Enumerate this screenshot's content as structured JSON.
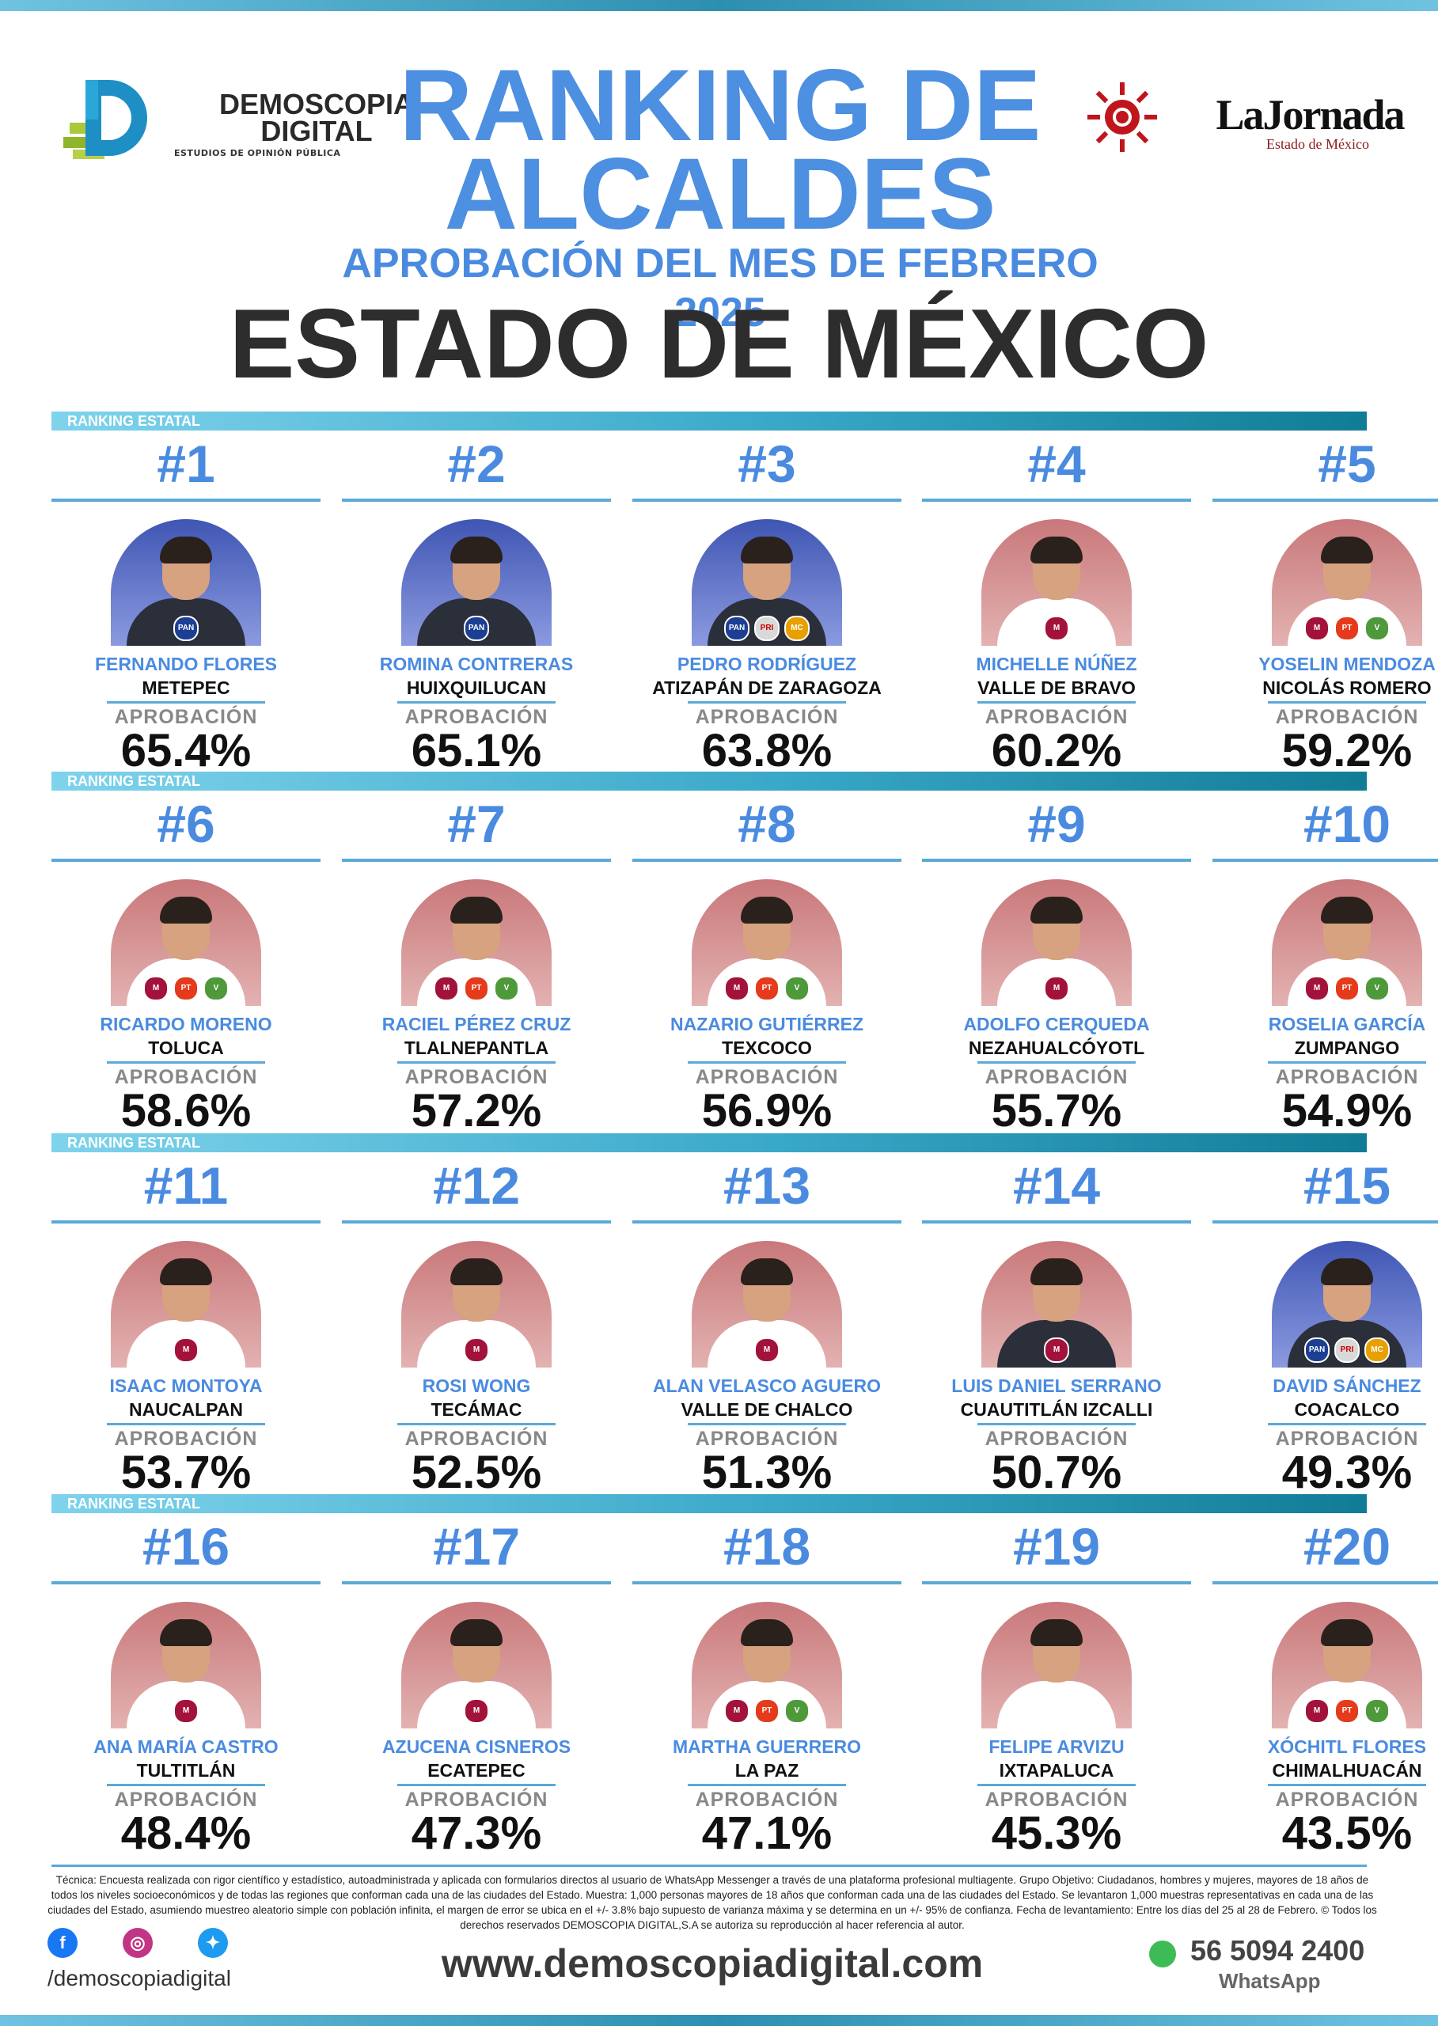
{
  "header": {
    "logo_left": {
      "name_line1": "DEMOSCOPIA",
      "name_line2": "DIGITAL",
      "tagline": "ESTUDIOS DE OPINIÓN PÚBLICA"
    },
    "logo_right": {
      "name": "LaJornada",
      "sub": "Estado de México"
    },
    "title_line1": "RANKING DE",
    "title_line2": "ALCALDES",
    "subtitle": "APROBACIÓN DEL MES DE FEBRERO 2025",
    "state": "ESTADO DE MÉXICO"
  },
  "band_label": "RANKING ESTATAL",
  "approval_label": "APROBACIÓN",
  "rows": [
    {
      "cards": [
        {
          "rank": "#1",
          "name": "FERNANDO FLORES",
          "city": "METEPEC",
          "approval": "65.4%",
          "bg": "blue",
          "parties": [
            "PAN"
          ]
        },
        {
          "rank": "#2",
          "name": "ROMINA CONTRERAS",
          "city": "HUIXQUILUCAN",
          "approval": "65.1%",
          "bg": "blue",
          "parties": [
            "PAN"
          ]
        },
        {
          "rank": "#3",
          "name": "PEDRO RODRÍGUEZ",
          "city": "ATIZAPÁN DE ZARAGOZA",
          "approval": "63.8%",
          "bg": "blue",
          "parties": [
            "PAN",
            "PRI",
            "MC"
          ]
        },
        {
          "rank": "#4",
          "name": "MICHELLE NÚÑEZ",
          "city": "VALLE DE BRAVO",
          "approval": "60.2%",
          "bg": "red",
          "parties": [
            "MORENA"
          ]
        },
        {
          "rank": "#5",
          "name": "YOSELIN MENDOZA",
          "city": "NICOLÁS ROMERO",
          "approval": "59.2%",
          "bg": "red",
          "parties": [
            "MORENA",
            "PT",
            "VERDE"
          ]
        }
      ]
    },
    {
      "cards": [
        {
          "rank": "#6",
          "name": "RICARDO MORENO",
          "city": "TOLUCA",
          "approval": "58.6%",
          "bg": "red",
          "parties": [
            "MORENA",
            "PT",
            "VERDE"
          ]
        },
        {
          "rank": "#7",
          "name": "RACIEL PÉREZ CRUZ",
          "city": "TLALNEPANTLA",
          "approval": "57.2%",
          "bg": "red",
          "parties": [
            "MORENA",
            "PT",
            "VERDE"
          ]
        },
        {
          "rank": "#8",
          "name": "NAZARIO GUTIÉRREZ",
          "city": "TEXCOCO",
          "approval": "56.9%",
          "bg": "red",
          "parties": [
            "MORENA",
            "PT",
            "VERDE"
          ]
        },
        {
          "rank": "#9",
          "name": "ADOLFO CERQUEDA",
          "city": "NEZAHUALCÓYOTL",
          "approval": "55.7%",
          "bg": "red",
          "parties": [
            "MORENA"
          ]
        },
        {
          "rank": "#10",
          "name": "ROSELIA GARCÍA",
          "city": "ZUMPANGO",
          "approval": "54.9%",
          "bg": "red",
          "parties": [
            "MORENA",
            "PT",
            "VERDE"
          ]
        }
      ]
    },
    {
      "cards": [
        {
          "rank": "#11",
          "name": "ISAAC MONTOYA",
          "city": "NAUCALPAN",
          "approval": "53.7%",
          "bg": "red",
          "parties": [
            "MORENA"
          ]
        },
        {
          "rank": "#12",
          "name": "ROSI WONG",
          "city": "TECÁMAC",
          "approval": "52.5%",
          "bg": "red",
          "parties": [
            "MORENA"
          ]
        },
        {
          "rank": "#13",
          "name": "ALAN VELASCO AGUERO",
          "city": "VALLE DE CHALCO",
          "approval": "51.3%",
          "bg": "red",
          "parties": [
            "MORENA"
          ]
        },
        {
          "rank": "#14",
          "name": "LUIS DANIEL SERRANO",
          "city": "CUAUTITLÁN IZCALLI",
          "approval": "50.7%",
          "bg": "red",
          "parties": [
            "MORENA"
          ]
        },
        {
          "rank": "#15",
          "name": "DAVID SÁNCHEZ",
          "city": "COACALCO",
          "approval": "49.3%",
          "bg": "blue",
          "parties": [
            "PAN",
            "PRI",
            "MC"
          ]
        }
      ]
    },
    {
      "cards": [
        {
          "rank": "#16",
          "name": "ANA MARÍA CASTRO",
          "city": "TULTITLÁN",
          "approval": "48.4%",
          "bg": "red",
          "parties": [
            "MORENA"
          ]
        },
        {
          "rank": "#17",
          "name": "AZUCENA CISNEROS",
          "city": "ECATEPEC",
          "approval": "47.3%",
          "bg": "red",
          "parties": [
            "MORENA"
          ]
        },
        {
          "rank": "#18",
          "name": "MARTHA GUERRERO",
          "city": "LA PAZ",
          "approval": "47.1%",
          "bg": "red",
          "parties": [
            "MORENA",
            "PT",
            "VERDE"
          ]
        },
        {
          "rank": "#19",
          "name": "FELIPE ARVIZU",
          "city": "IXTAPALUCA",
          "approval": "45.3%",
          "bg": "red",
          "parties": []
        },
        {
          "rank": "#20",
          "name": "XÓCHITL FLORES",
          "city": "CHIMALHUACÁN",
          "approval": "43.5%",
          "bg": "red",
          "parties": [
            "MORENA",
            "PT",
            "VERDE"
          ]
        }
      ]
    }
  ],
  "footer": {
    "technical_note": "Técnica: Encuesta realizada con rigor científico y estadístico, autoadministrada y aplicada con formularios directos al usuario de WhatsApp Messenger a través de una plataforma profesional multiagente. Grupo Objetivo: Ciudadanos, hombres y mujeres, mayores de 18 años de todos los niveles socioeconómicos y de todas las regiones que conforman cada una de las ciudades del Estado. Muestra: 1,000 personas mayores de 18 años que conforman cada una de las ciudades del Estado. Se levantaron 1,000 muestras representativas en cada una de las ciudades del Estado, asumiendo muestreo aleatorio simple con población infinita, el margen de error se ubica en el +/- 3.8% bajo supuesto de varianza máxima y se determina en un +/- 95% de confianza. Fecha de levantamiento: Entre los días del 25 al 28 de Febrero. © Todos los derechos reservados DEMOSCOPIA DIGITAL,S.A se autoriza su reproducción al hacer referencia al autor.",
    "social_handle": "/demoscopiadigital",
    "website": "www.demoscopiadigital.com",
    "phone": "56 5094 2400",
    "phone_label": "WhatsApp"
  },
  "colors": {
    "accent_blue": "#4a8be0",
    "band": "#3aa8c9",
    "morena": "#a3123a"
  }
}
